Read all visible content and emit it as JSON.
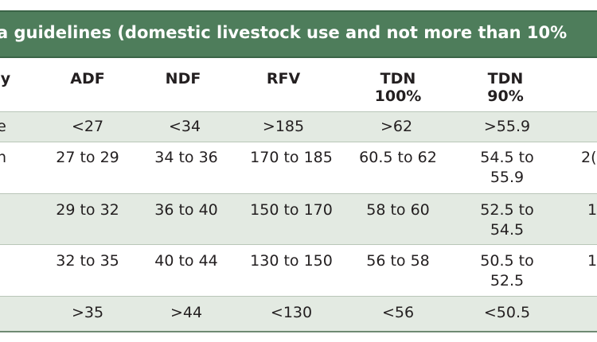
{
  "title": "a guidelines (domestic livestock use and not more than 10%",
  "headers": [
    {
      "line1": "y",
      "line2": ""
    },
    {
      "line1": "ADF",
      "line2": ""
    },
    {
      "line1": "NDF",
      "line2": ""
    },
    {
      "line1": "RFV",
      "line2": ""
    },
    {
      "line1": "TDN",
      "line2": "100%"
    },
    {
      "line1": "TDN",
      "line2": "90%"
    },
    {
      "line1": "",
      "line2": ""
    }
  ],
  "rows": [
    {
      "c0": "e",
      "c1": "<27",
      "c2": "<34",
      "c3": ">185",
      "c4": ">62",
      "c5a": ">55.9",
      "c5b": "",
      "c6": ""
    },
    {
      "c0": "n",
      "c1": "27 to 29",
      "c2": "34 to 36",
      "c3": "170 to 185",
      "c4": "60.5 to 62",
      "c5a": "54.5 to",
      "c5b": "55.9",
      "c6": "2("
    },
    {
      "c0": "",
      "c1": "29 to 32",
      "c2": "36 to 40",
      "c3": "150 to 170",
      "c4": "58 to 60",
      "c5a": "52.5 to",
      "c5b": "54.5",
      "c6": "1("
    },
    {
      "c0": "",
      "c1": "32 to 35",
      "c2": "40 to 44",
      "c3": "130 to 150",
      "c4": "56 to 58",
      "c5a": "50.5 to",
      "c5b": "52.5",
      "c6": "1("
    },
    {
      "c0": "",
      "c1": ">35",
      "c2": ">44",
      "c3": "<130",
      "c4": "<56",
      "c5a": "<50.5",
      "c5b": "",
      "c6": ""
    }
  ]
}
